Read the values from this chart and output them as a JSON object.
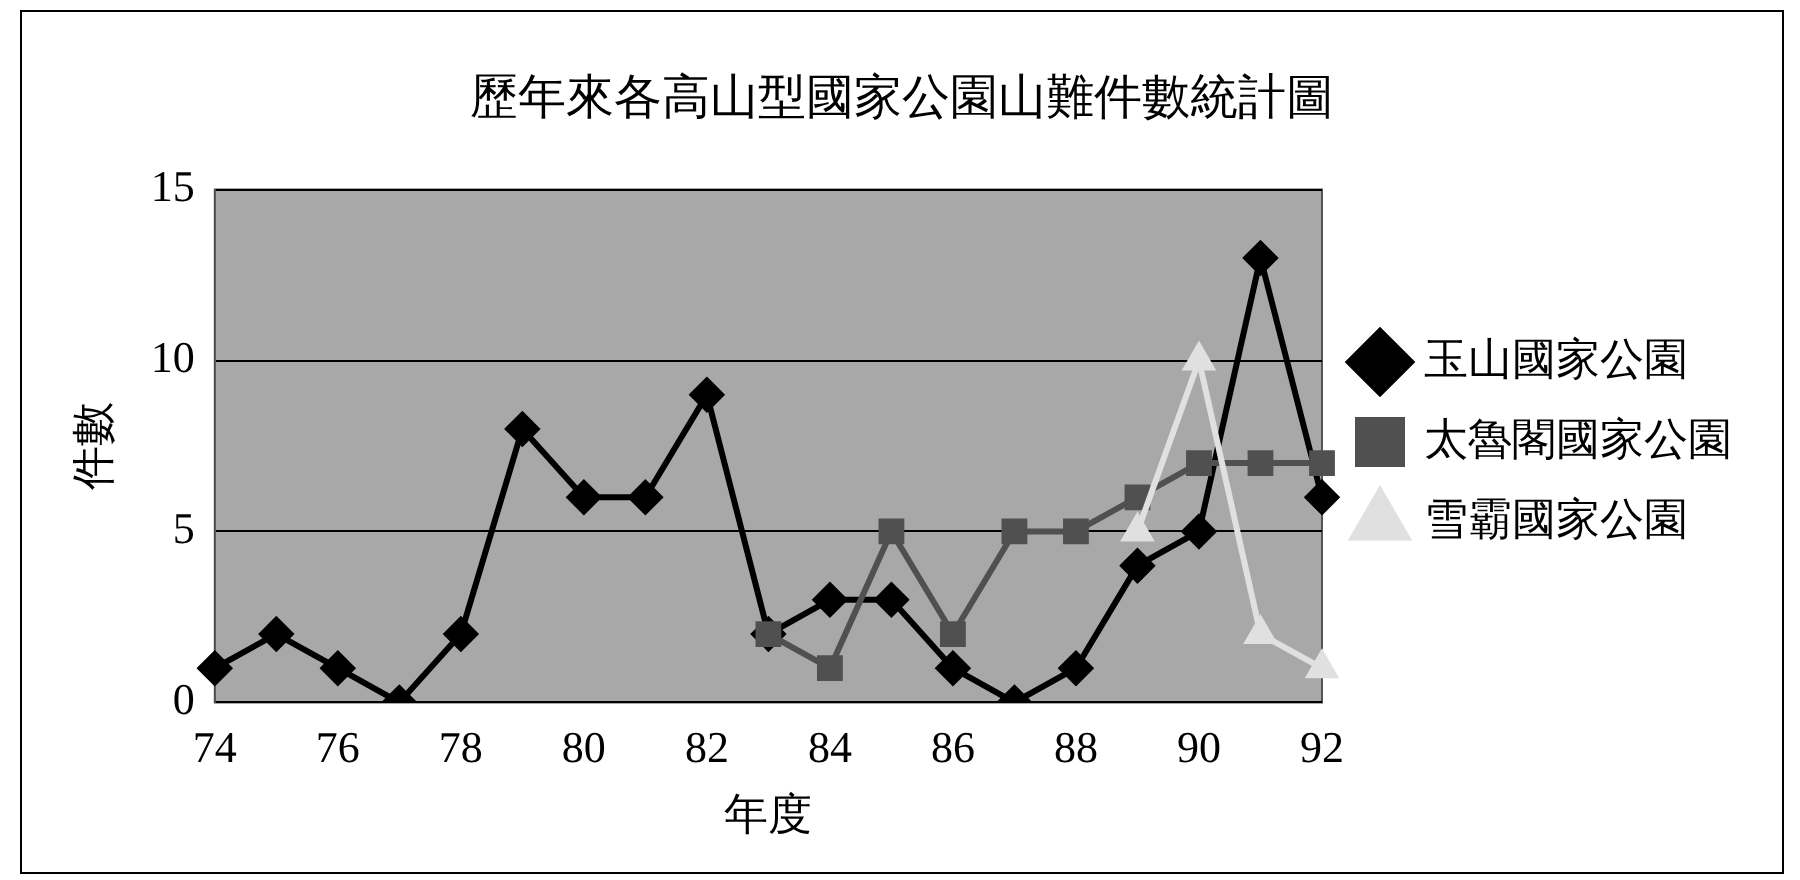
{
  "chart_data": {
    "type": "line",
    "title": "歷年來各高山型國家公園山難件數統計圖",
    "xlabel": "年度",
    "ylabel": "件數",
    "categories": [
      "74",
      null,
      "76",
      null,
      "78",
      null,
      "80",
      null,
      "82",
      null,
      "84",
      null,
      "86",
      null,
      "88",
      null,
      "90",
      null,
      "92"
    ],
    "ylim": [
      0,
      15
    ],
    "yticks": [
      0,
      5,
      10,
      15
    ],
    "grid": "y",
    "legend": "right",
    "series": [
      {
        "name": "玉山國家公園",
        "color": "#000000",
        "marker": "diamond",
        "values": [
          1,
          2,
          1,
          0,
          2,
          8,
          6,
          6,
          9,
          2,
          3,
          3,
          1,
          0,
          1,
          4,
          5,
          13,
          6
        ]
      },
      {
        "name": "太魯閣國家公園",
        "color": "#505050",
        "marker": "square",
        "values": [
          null,
          null,
          null,
          null,
          null,
          null,
          null,
          null,
          null,
          2,
          1,
          5,
          2,
          5,
          5,
          6,
          7,
          7,
          7
        ]
      },
      {
        "name": "雪霸國家公園",
        "color": "#e0e0e0",
        "marker": "triangle",
        "values": [
          null,
          null,
          null,
          null,
          null,
          null,
          null,
          null,
          null,
          null,
          null,
          null,
          null,
          null,
          null,
          5,
          10,
          2,
          1
        ]
      }
    ]
  }
}
